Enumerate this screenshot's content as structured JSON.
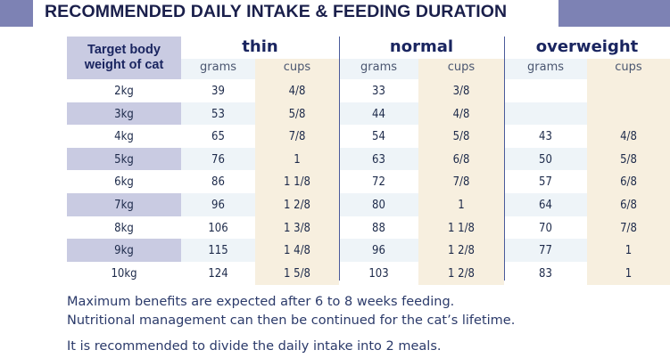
{
  "title": "RECOMMENDED DAILY INTAKE & FEEDING DURATION",
  "colors": {
    "title_accent": "#7d82b4",
    "header_stripe": "#c9cbe2",
    "cups_tint": "#f7efdf",
    "grams_tint": "#eef4f8"
  },
  "table": {
    "corner_label_line1": "Target body",
    "corner_label_line2": "weight of cat",
    "groups": [
      "thin",
      "normal",
      "overweight"
    ],
    "subheaders": [
      "grams",
      "cups",
      "grams",
      "cups",
      "grams",
      "cups"
    ],
    "rows": [
      {
        "weight": "2kg",
        "cells": [
          "39",
          "4/8",
          "33",
          "3/8",
          "",
          ""
        ]
      },
      {
        "weight": "3kg",
        "cells": [
          "53",
          "5/8",
          "44",
          "4/8",
          "",
          ""
        ]
      },
      {
        "weight": "4kg",
        "cells": [
          "65",
          "7/8",
          "54",
          "5/8",
          "43",
          "4/8"
        ]
      },
      {
        "weight": "5kg",
        "cells": [
          "76",
          "1",
          "63",
          "6/8",
          "50",
          "5/8"
        ]
      },
      {
        "weight": "6kg",
        "cells": [
          "86",
          "1 1/8",
          "72",
          "7/8",
          "57",
          "6/8"
        ]
      },
      {
        "weight": "7kg",
        "cells": [
          "96",
          "1 2/8",
          "80",
          "1",
          "64",
          "6/8"
        ]
      },
      {
        "weight": "8kg",
        "cells": [
          "106",
          "1 3/8",
          "88",
          "1 1/8",
          "70",
          "7/8"
        ]
      },
      {
        "weight": "9kg",
        "cells": [
          "115",
          "1 4/8",
          "96",
          "1 2/8",
          "77",
          "1"
        ]
      },
      {
        "weight": "10kg",
        "cells": [
          "124",
          "1 5/8",
          "103",
          "1 2/8",
          "83",
          "1"
        ]
      }
    ]
  },
  "notes": [
    "Maximum benefits are expected after 6 to 8 weeks feeding.",
    "Nutritional management can then be continued for the cat’s lifetime.",
    "It is recommended to divide the daily intake into 2 meals."
  ]
}
